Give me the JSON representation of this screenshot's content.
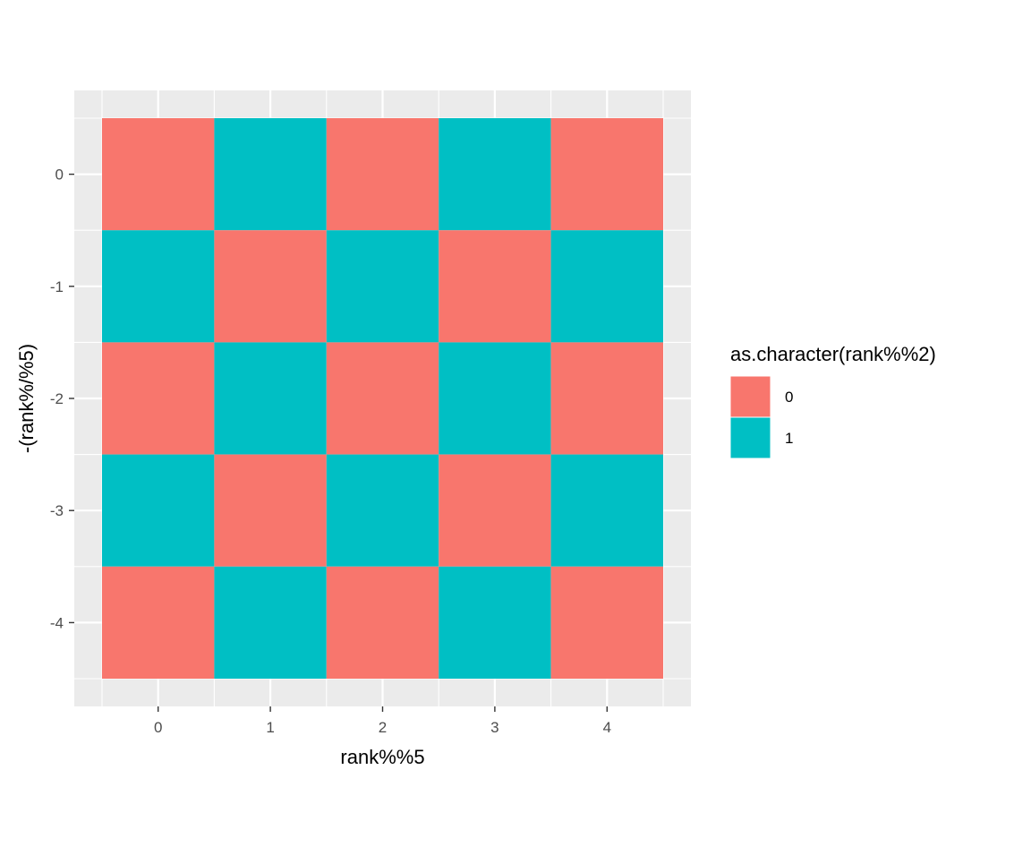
{
  "chart_data": {
    "type": "heatmap",
    "title": "",
    "xlabel": "rank%%5",
    "ylabel": "-(rank%/%5)",
    "x_ticks": [
      0,
      1,
      2,
      3,
      4
    ],
    "y_ticks": [
      0,
      -1,
      -2,
      -3,
      -4
    ],
    "xlim": [
      -0.5,
      4.5
    ],
    "ylim": [
      -4.5,
      0.5
    ],
    "grid": true,
    "legend": {
      "title": "as.character(rank%%2)",
      "position": "right",
      "entries": [
        {
          "label": "0",
          "color": "#F8766D"
        },
        {
          "label": "1",
          "color": "#00BFC4"
        }
      ]
    },
    "cells": [
      {
        "x": 0,
        "y": 0,
        "fill": "0"
      },
      {
        "x": 1,
        "y": 0,
        "fill": "1"
      },
      {
        "x": 2,
        "y": 0,
        "fill": "0"
      },
      {
        "x": 3,
        "y": 0,
        "fill": "1"
      },
      {
        "x": 4,
        "y": 0,
        "fill": "0"
      },
      {
        "x": 0,
        "y": -1,
        "fill": "1"
      },
      {
        "x": 1,
        "y": -1,
        "fill": "0"
      },
      {
        "x": 2,
        "y": -1,
        "fill": "1"
      },
      {
        "x": 3,
        "y": -1,
        "fill": "0"
      },
      {
        "x": 4,
        "y": -1,
        "fill": "1"
      },
      {
        "x": 0,
        "y": -2,
        "fill": "0"
      },
      {
        "x": 1,
        "y": -2,
        "fill": "1"
      },
      {
        "x": 2,
        "y": -2,
        "fill": "0"
      },
      {
        "x": 3,
        "y": -2,
        "fill": "1"
      },
      {
        "x": 4,
        "y": -2,
        "fill": "0"
      },
      {
        "x": 0,
        "y": -3,
        "fill": "1"
      },
      {
        "x": 1,
        "y": -3,
        "fill": "0"
      },
      {
        "x": 2,
        "y": -3,
        "fill": "1"
      },
      {
        "x": 3,
        "y": -3,
        "fill": "0"
      },
      {
        "x": 4,
        "y": -3,
        "fill": "1"
      },
      {
        "x": 0,
        "y": -4,
        "fill": "0"
      },
      {
        "x": 1,
        "y": -4,
        "fill": "1"
      },
      {
        "x": 2,
        "y": -4,
        "fill": "0"
      },
      {
        "x": 3,
        "y": -4,
        "fill": "1"
      },
      {
        "x": 4,
        "y": -4,
        "fill": "0"
      }
    ],
    "colors": {
      "panel_background": "#EBEBEB",
      "grid_line": "#FFFFFF",
      "tick_label": "#4D4D4D"
    }
  }
}
